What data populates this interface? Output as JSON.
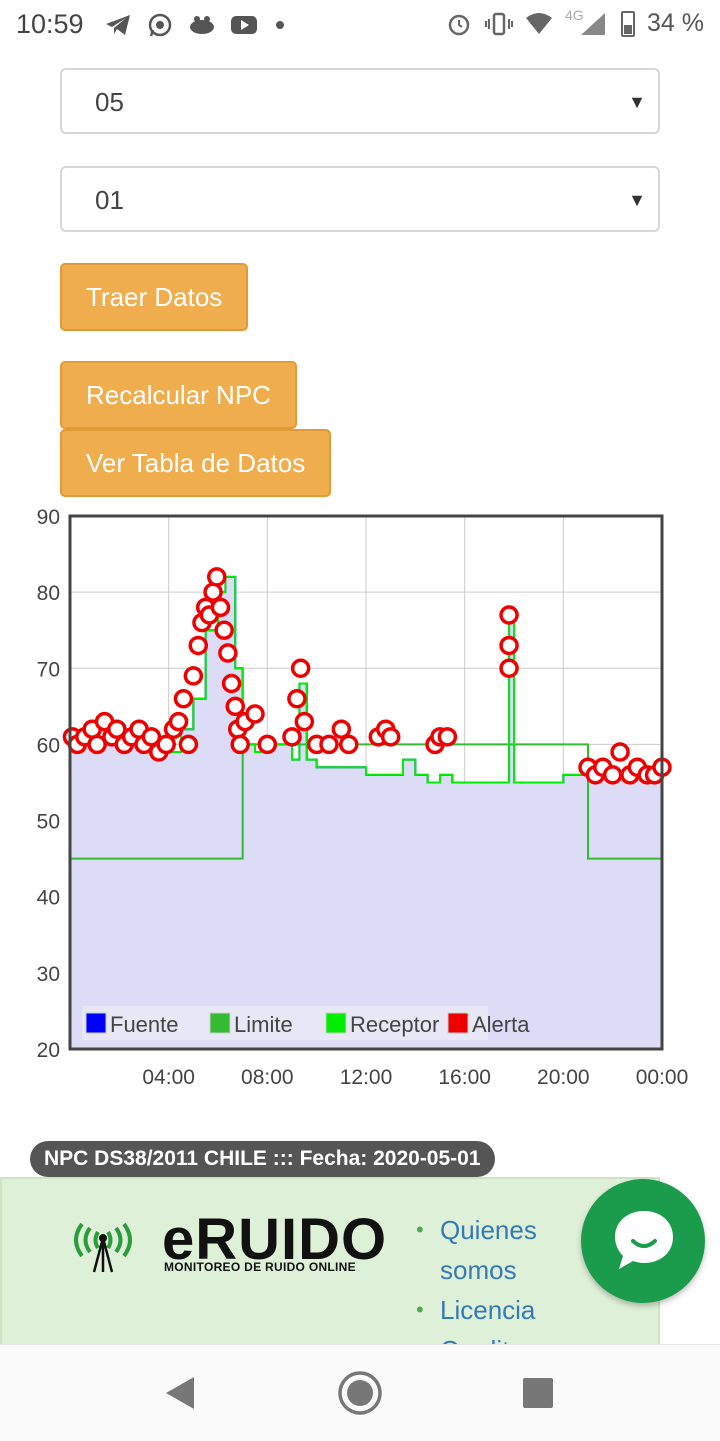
{
  "status_bar": {
    "time": "10:59",
    "left_icons": [
      "telegram-icon",
      "whatsapp-icon",
      "notification-icon",
      "youtube-icon",
      "more-dot-icon"
    ],
    "right_icons": [
      "alarm-icon",
      "vibrate-icon",
      "wifi-icon",
      "signal-4g-icon",
      "battery-icon"
    ],
    "network": "4G",
    "battery": "34 %"
  },
  "form": {
    "month_select": {
      "value": "05"
    },
    "day_select": {
      "value": "01"
    },
    "fetch_button": "Traer Datos",
    "recalc_button": "Recalcular NPC",
    "table_button": "Ver Tabla de Datos"
  },
  "chart_data": {
    "type": "line",
    "title": "",
    "xlabel": "",
    "ylabel": "",
    "ylim": [
      20,
      90
    ],
    "xlim_hours": [
      0,
      24
    ],
    "x_ticks": [
      "04:00",
      "08:00",
      "12:00",
      "16:00",
      "20:00",
      "00:00"
    ],
    "y_ticks": [
      "20",
      "30",
      "40",
      "50",
      "60",
      "70",
      "80",
      "90"
    ],
    "grid": true,
    "legend_position": "bottom-left",
    "legend": [
      "Fuente",
      "Limite",
      "Receptor",
      "Alerta"
    ],
    "colors": {
      "Fuente": "#0000ff",
      "Limite": "#33bb33",
      "Receptor": "#00ee00",
      "Alerta": "#ee0000",
      "fill": "#dcdcf6"
    },
    "series": [
      {
        "name": "Limite",
        "x": [
          0,
          7,
          7,
          21,
          21,
          24
        ],
        "values": [
          45,
          45,
          60,
          60,
          45,
          45
        ]
      },
      {
        "name": "Receptor",
        "x": [
          0,
          1,
          2,
          3,
          3.7,
          4.5,
          5,
          5.5,
          6,
          6.3,
          6.7,
          7,
          7.5,
          8,
          9,
          9.3,
          9.6,
          10,
          11,
          12,
          13,
          13.5,
          14,
          14.5,
          15,
          15.5,
          16,
          17,
          17.6,
          17.8,
          18,
          19,
          20,
          21,
          22,
          23,
          24
        ],
        "values": [
          60,
          60,
          61,
          60,
          59,
          62,
          66,
          75,
          80,
          82,
          70,
          60,
          59,
          60,
          58,
          68,
          58,
          57,
          57,
          56,
          56,
          58,
          56,
          55,
          56,
          55,
          55,
          55,
          55,
          77,
          55,
          55,
          56,
          56,
          56,
          56,
          57
        ]
      }
    ],
    "alerts": {
      "name": "Alerta",
      "x": [
        0.1,
        0.3,
        0.6,
        0.9,
        1.1,
        1.4,
        1.7,
        1.9,
        2.2,
        2.5,
        2.8,
        3.0,
        3.3,
        3.6,
        3.9,
        4.2,
        4.4,
        4.6,
        4.8,
        5.0,
        5.2,
        5.35,
        5.5,
        5.65,
        5.8,
        5.95,
        6.1,
        6.25,
        6.4,
        6.55,
        6.7,
        6.8,
        6.9,
        7.1,
        7.5,
        8.0,
        9.0,
        9.2,
        9.35,
        9.5,
        10.0,
        10.5,
        11.0,
        11.3,
        12.5,
        12.8,
        13.0,
        14.8,
        15.0,
        15.3,
        17.8,
        17.8,
        17.8,
        21.0,
        21.3,
        21.6,
        22.0,
        22.3,
        22.7,
        23.0,
        23.4,
        23.7,
        24.0
      ],
      "values": [
        61,
        60,
        61,
        62,
        60,
        63,
        61,
        62,
        60,
        61,
        62,
        60,
        61,
        59,
        60,
        62,
        63,
        66,
        60,
        69,
        73,
        76,
        78,
        77,
        80,
        82,
        78,
        75,
        72,
        68,
        65,
        62,
        60,
        63,
        64,
        60,
        61,
        66,
        70,
        63,
        60,
        60,
        62,
        60,
        61,
        62,
        61,
        60,
        61,
        61,
        77,
        73,
        70,
        57,
        56,
        57,
        56,
        59,
        56,
        57,
        56,
        56,
        57
      ]
    }
  },
  "caption": "NPC DS38/2011 CHILE ::: Fecha: 2020-05-01",
  "footer": {
    "logo_text": "eRUIDO",
    "logo_subtitle": "MONITOREO DE RUIDO ONLINE",
    "links": [
      {
        "label_line1": "Quienes",
        "label_line2": "somos"
      },
      {
        "label_line1": "Licencia",
        "label_line2": ""
      },
      {
        "label_line1": "Creditos",
        "label_line2": ""
      }
    ]
  }
}
